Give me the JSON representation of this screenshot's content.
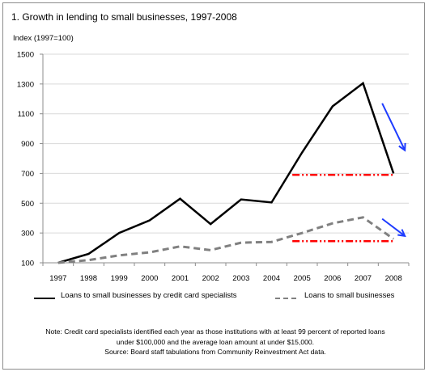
{
  "title": "1.  Growth in lending to small businesses, 1997-2008",
  "chart_data": {
    "type": "line",
    "ylabel": "Index (1997=100)",
    "xlabel": "",
    "categories": [
      "1997",
      "1998",
      "1999",
      "2000",
      "2001",
      "2002",
      "2003",
      "2004",
      "2005",
      "2006",
      "2007",
      "2008"
    ],
    "y_ticks": [
      100,
      300,
      500,
      700,
      900,
      1100,
      1300,
      1500
    ],
    "y_tick_labels": [
      "100",
      "300",
      "500",
      "700",
      "900",
      "1100",
      "1300",
      "1500"
    ],
    "ylim": [
      100,
      1500
    ],
    "grid": "horizontal",
    "legend_position": "bottom",
    "series": [
      {
        "name": "Loans to small businesses by credit card specialists",
        "color": "#000000",
        "style": "solid",
        "values": [
          100,
          160,
          300,
          385,
          530,
          360,
          525,
          505,
          840,
          1150,
          1305,
          700
        ]
      },
      {
        "name": "Loans to small businesses",
        "color": "#808080",
        "style": "dashed",
        "values": [
          100,
          118,
          150,
          170,
          210,
          185,
          235,
          240,
          300,
          365,
          405,
          260
        ]
      }
    ],
    "annotations": [
      {
        "type": "hline",
        "color": "#ff0000",
        "style": "dash-dot",
        "x_start": "2005",
        "x_end": "2008",
        "y": 690
      },
      {
        "type": "hline",
        "color": "#ff0000",
        "style": "dash-dot",
        "x_start": "2005",
        "x_end": "2008",
        "y": 245
      },
      {
        "type": "arrow",
        "color": "#1e3cff",
        "direction": "down-right",
        "near": "2008",
        "from_y": 1170,
        "to_y": 855
      },
      {
        "type": "arrow",
        "color": "#1e3cff",
        "direction": "down-right",
        "near": "2008",
        "from_y": 395,
        "to_y": 280
      }
    ]
  },
  "note": {
    "line1": "Note: Credit card specialists identified each year as those institutions with at least 99 percent of  reported loans",
    "line2": "under $100,000 and the average loan amount at under $15,000.",
    "line3": "Source:  Board staff tabulations from Community Reinvestment Act data."
  }
}
